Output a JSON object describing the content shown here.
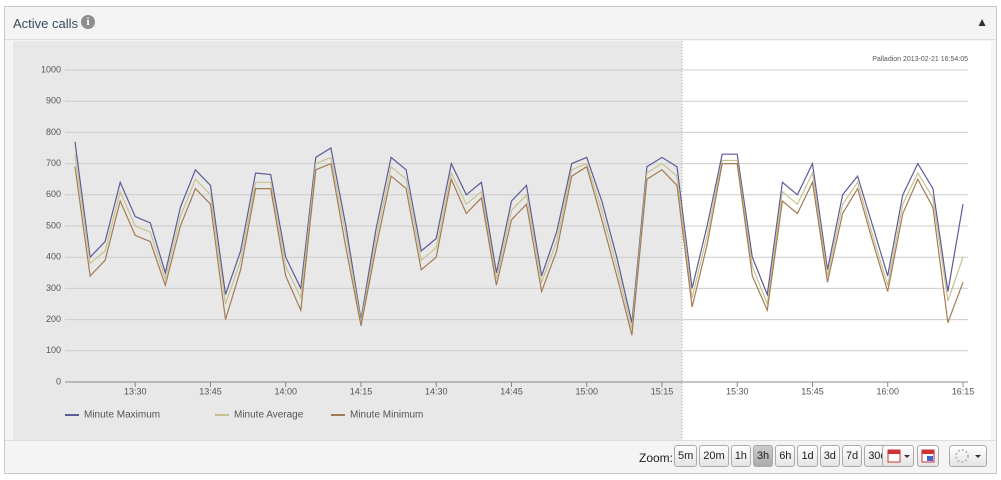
{
  "panel": {
    "title": "Active calls"
  },
  "chart_data": {
    "type": "line",
    "annotation": "Palladion 2013-02-21 16:54:05",
    "x": [
      "13:18",
      "13:21",
      "13:24",
      "13:27",
      "13:30",
      "13:33",
      "13:36",
      "13:39",
      "13:42",
      "13:45",
      "13:48",
      "13:51",
      "13:54",
      "13:57",
      "14:00",
      "14:03",
      "14:06",
      "14:09",
      "14:12",
      "14:15",
      "14:18",
      "14:21",
      "14:24",
      "14:27",
      "14:30",
      "14:33",
      "14:36",
      "14:39",
      "14:42",
      "14:45",
      "14:48",
      "14:51",
      "14:54",
      "14:57",
      "15:00",
      "15:03",
      "15:06",
      "15:09",
      "15:12",
      "15:15",
      "15:18",
      "15:21",
      "15:24",
      "15:27",
      "15:30",
      "15:33",
      "15:36",
      "15:39",
      "15:42",
      "15:45",
      "15:48",
      "15:51",
      "15:54",
      "15:57",
      "16:00",
      "16:03",
      "16:06",
      "16:09",
      "16:12",
      "16:15"
    ],
    "series": [
      {
        "name": "Minute Maximum",
        "color": "#5b5b99",
        "values": [
          770,
          400,
          450,
          640,
          530,
          510,
          350,
          560,
          680,
          630,
          280,
          420,
          670,
          665,
          400,
          300,
          720,
          750,
          500,
          200,
          490,
          720,
          680,
          420,
          460,
          700,
          600,
          640,
          350,
          580,
          630,
          340,
          480,
          700,
          720,
          580,
          400,
          190,
          690,
          720,
          690,
          300,
          500,
          730,
          730,
          400,
          280,
          640,
          600,
          700,
          360,
          600,
          660,
          500,
          340,
          600,
          700,
          620,
          290,
          570
        ]
      },
      {
        "name": "Minute Average",
        "color": "#c9c18d",
        "values": [
          730,
          380,
          420,
          610,
          500,
          480,
          330,
          530,
          650,
          600,
          250,
          390,
          640,
          640,
          370,
          270,
          700,
          720,
          470,
          190,
          460,
          690,
          650,
          390,
          430,
          670,
          570,
          610,
          330,
          550,
          600,
          320,
          450,
          680,
          700,
          550,
          370,
          170,
          670,
          700,
          660,
          270,
          470,
          710,
          710,
          370,
          250,
          610,
          570,
          670,
          340,
          570,
          640,
          470,
          310,
          570,
          670,
          590,
          260,
          400
        ]
      },
      {
        "name": "Minute Minimum",
        "color": "#a47b55",
        "values": [
          690,
          340,
          390,
          580,
          470,
          450,
          310,
          500,
          620,
          570,
          200,
          360,
          620,
          620,
          340,
          230,
          680,
          700,
          430,
          180,
          430,
          660,
          620,
          360,
          400,
          650,
          540,
          590,
          310,
          520,
          570,
          290,
          420,
          660,
          690,
          520,
          340,
          150,
          650,
          680,
          630,
          240,
          440,
          700,
          700,
          340,
          230,
          580,
          540,
          640,
          320,
          540,
          620,
          450,
          290,
          540,
          650,
          560,
          190,
          320
        ]
      }
    ],
    "xlim": [
      "13:16",
      "16:16"
    ],
    "xticks": [
      "13:30",
      "13:45",
      "14:00",
      "14:15",
      "14:30",
      "14:45",
      "15:00",
      "15:15",
      "15:30",
      "15:45",
      "16:00",
      "16:15"
    ],
    "ylim": [
      0,
      1000
    ],
    "yticks": [
      0,
      100,
      200,
      300,
      400,
      500,
      600,
      700,
      800,
      900,
      1000
    ],
    "grid": true,
    "shaded_until": "15:19"
  },
  "toolbar": {
    "zoom_label": "Zoom:",
    "zoom_buttons": [
      "5m",
      "20m",
      "1h",
      "3h",
      "6h",
      "1d",
      "3d",
      "7d",
      "30d"
    ],
    "active": "3h"
  }
}
